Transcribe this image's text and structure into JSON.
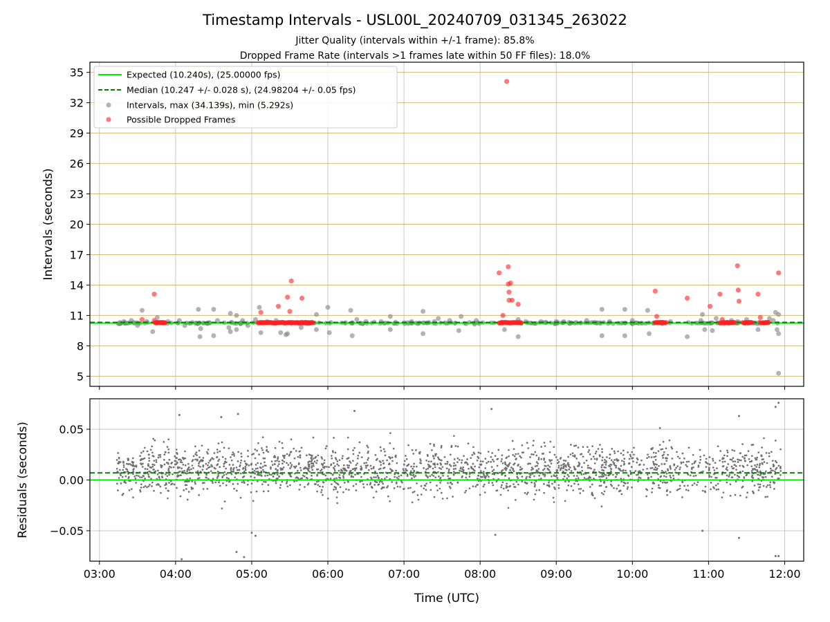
{
  "figure": {
    "title": "Timestamp Intervals - USL00L_20240709_031345_263022",
    "subtitle_1": "Jitter Quality (intervals within +/-1 frame): 85.8%",
    "subtitle_2": "Dropped Frame Rate (intervals >1 frames late within 50 FF files): 18.0%"
  },
  "chart_data": [
    {
      "type": "scatter",
      "ylabel": "Intervals (seconds)",
      "xlabel": "",
      "xlim_hours": [
        2.875,
        12.25
      ],
      "ylim": [
        4,
        36
      ],
      "yticks": [
        5,
        8,
        11,
        14,
        17,
        20,
        23,
        26,
        29,
        32,
        35
      ],
      "ytick_labels": [
        "5",
        "8",
        "11",
        "14",
        "17",
        "20",
        "23",
        "26",
        "29",
        "32",
        "35"
      ],
      "horizontal_gridlines": "tan",
      "vertical_gridlines": true,
      "legend_position": "upper-left",
      "legend": [
        {
          "label": "Expected (10.240s), (25.00000 fps)",
          "style": "solid-line",
          "color": "#00ee00"
        },
        {
          "label": "Median (10.247 +/- 0.028 s), (24.98204 +/- 0.05 fps)",
          "style": "dashed-line",
          "color": "#008000"
        },
        {
          "label": "Intervals, max (34.139s), min (5.292s)",
          "style": "marker",
          "color": "#808080"
        },
        {
          "label": "Possible Dropped Frames",
          "style": "marker",
          "color": "#ff2020"
        }
      ],
      "expected_interval": 10.24,
      "median_interval": 10.247,
      "interval_band_range": [
        3.23,
        11.93
      ],
      "interval_band_values": [
        10.18,
        10.32
      ],
      "gray_outliers": [
        [
          3.32,
          10.4
        ],
        [
          3.42,
          10.5
        ],
        [
          3.5,
          10.0
        ],
        [
          3.56,
          11.5
        ],
        [
          3.62,
          10.4
        ],
        [
          3.7,
          9.4
        ],
        [
          3.76,
          10.8
        ],
        [
          3.9,
          10.4
        ],
        [
          4.05,
          10.5
        ],
        [
          4.12,
          10.0
        ],
        [
          4.22,
          10.3
        ],
        [
          4.3,
          11.6
        ],
        [
          4.32,
          8.9
        ],
        [
          4.33,
          9.7
        ],
        [
          4.42,
          10.2
        ],
        [
          4.5,
          11.6
        ],
        [
          4.5,
          9.0
        ],
        [
          4.55,
          10.5
        ],
        [
          4.7,
          9.8
        ],
        [
          4.72,
          11.2
        ],
        [
          4.72,
          9.4
        ],
        [
          4.8,
          11.0
        ],
        [
          4.8,
          9.6
        ],
        [
          4.88,
          10.5
        ],
        [
          4.95,
          10.0
        ],
        [
          5.05,
          10.6
        ],
        [
          5.1,
          11.8
        ],
        [
          5.12,
          9.3
        ],
        [
          5.2,
          10.4
        ],
        [
          5.32,
          10.5
        ],
        [
          5.38,
          9.3
        ],
        [
          5.45,
          9.1
        ],
        [
          5.47,
          9.2
        ],
        [
          5.65,
          9.8
        ],
        [
          5.75,
          10.2
        ],
        [
          5.85,
          9.6
        ],
        [
          5.85,
          11.1
        ],
        [
          6.0,
          11.8
        ],
        [
          6.02,
          9.3
        ],
        [
          6.3,
          11.5
        ],
        [
          6.32,
          9.0
        ],
        [
          6.38,
          10.6
        ],
        [
          6.5,
          10.4
        ],
        [
          6.7,
          10.4
        ],
        [
          6.82,
          10.9
        ],
        [
          6.82,
          9.6
        ],
        [
          7.1,
          10.4
        ],
        [
          7.25,
          11.4
        ],
        [
          7.25,
          9.2
        ],
        [
          7.4,
          10.4
        ],
        [
          7.45,
          10.7
        ],
        [
          7.6,
          10.5
        ],
        [
          7.72,
          9.5
        ],
        [
          7.75,
          10.9
        ],
        [
          7.95,
          10.5
        ],
        [
          8.32,
          9.6
        ],
        [
          8.5,
          8.9
        ],
        [
          8.5,
          10.6
        ],
        [
          8.6,
          10.4
        ],
        [
          8.8,
          10.4
        ],
        [
          9.0,
          10.4
        ],
        [
          9.1,
          10.4
        ],
        [
          9.4,
          10.5
        ],
        [
          9.6,
          11.6
        ],
        [
          9.6,
          9.0
        ],
        [
          9.7,
          10.4
        ],
        [
          9.9,
          11.6
        ],
        [
          9.9,
          9.0
        ],
        [
          10.0,
          10.5
        ],
        [
          10.2,
          11.5
        ],
        [
          10.22,
          9.2
        ],
        [
          10.5,
          10.4
        ],
        [
          10.72,
          8.9
        ],
        [
          10.9,
          10.5
        ],
        [
          10.92,
          11.1
        ],
        [
          10.95,
          9.6
        ],
        [
          11.05,
          9.5
        ],
        [
          11.1,
          10.7
        ],
        [
          11.2,
          10.2
        ],
        [
          11.3,
          10.5
        ],
        [
          11.38,
          10.4
        ],
        [
          11.5,
          10.6
        ],
        [
          11.65,
          9.6
        ],
        [
          11.8,
          10.7
        ],
        [
          11.85,
          10.5
        ],
        [
          11.88,
          11.3
        ],
        [
          11.9,
          9.6
        ],
        [
          11.92,
          9.2
        ],
        [
          11.92,
          11.1
        ],
        [
          11.92,
          5.29
        ]
      ],
      "dropped_frames": [
        [
          3.56,
          10.6
        ],
        [
          3.72,
          13.1
        ],
        [
          3.72,
          10.5
        ],
        [
          3.75,
          10.3
        ],
        [
          3.8,
          10.3
        ],
        [
          3.85,
          10.3
        ],
        [
          5.12,
          11.3
        ],
        [
          5.15,
          10.3
        ],
        [
          5.2,
          10.3
        ],
        [
          5.35,
          11.9
        ],
        [
          5.42,
          10.3
        ],
        [
          5.47,
          12.8
        ],
        [
          5.5,
          11.4
        ],
        [
          5.52,
          14.4
        ],
        [
          5.6,
          10.3
        ],
        [
          5.66,
          12.7
        ],
        [
          5.7,
          10.3
        ],
        [
          5.78,
          10.3
        ],
        [
          8.25,
          15.2
        ],
        [
          8.3,
          11.0
        ],
        [
          8.35,
          34.1
        ],
        [
          8.37,
          15.8
        ],
        [
          8.37,
          14.1
        ],
        [
          8.38,
          13.3
        ],
        [
          8.38,
          12.5
        ],
        [
          8.4,
          14.2
        ],
        [
          8.42,
          12.5
        ],
        [
          8.5,
          12.1
        ],
        [
          8.5,
          10.3
        ],
        [
          10.3,
          13.4
        ],
        [
          10.32,
          10.9
        ],
        [
          10.4,
          10.3
        ],
        [
          10.72,
          12.7
        ],
        [
          11.02,
          11.9
        ],
        [
          11.15,
          13.1
        ],
        [
          11.18,
          10.6
        ],
        [
          11.25,
          10.3
        ],
        [
          11.38,
          15.9
        ],
        [
          11.39,
          13.5
        ],
        [
          11.4,
          12.4
        ],
        [
          11.5,
          10.3
        ],
        [
          11.55,
          10.3
        ],
        [
          11.65,
          13.1
        ],
        [
          11.68,
          10.8
        ],
        [
          11.75,
          10.3
        ],
        [
          11.92,
          15.2
        ]
      ],
      "dropped_frame_runs": [
        [
          3.73,
          3.87
        ],
        [
          5.08,
          5.8
        ],
        [
          8.25,
          8.55
        ],
        [
          10.3,
          10.45
        ],
        [
          11.15,
          11.35
        ],
        [
          11.45,
          11.58
        ],
        [
          11.68,
          11.8
        ]
      ]
    },
    {
      "type": "scatter",
      "ylabel": "Residuals (seconds)",
      "xlabel": "Time (UTC)",
      "xlim_hours": [
        2.875,
        12.25
      ],
      "ylim": [
        -0.08,
        0.08
      ],
      "yticks": [
        -0.05,
        0.0,
        0.05
      ],
      "ytick_labels": [
        "−0.05",
        "0.00",
        "0.05"
      ],
      "xtick_labels": [
        "03:00",
        "04:00",
        "05:00",
        "06:00",
        "07:00",
        "08:00",
        "09:00",
        "10:00",
        "11:00",
        "12:00"
      ],
      "grid": true,
      "expected_residual": 0.0,
      "median_residual": 0.007,
      "residual_time_range": [
        3.23,
        11.95
      ],
      "residual_typical_range": [
        -0.025,
        0.045
      ],
      "residual_extremes": [
        [
          4.05,
          0.064
        ],
        [
          4.08,
          -0.078
        ],
        [
          4.6,
          0.062
        ],
        [
          4.82,
          0.065
        ],
        [
          4.8,
          -0.071
        ],
        [
          4.9,
          -0.076
        ],
        [
          5.0,
          -0.052
        ],
        [
          5.05,
          -0.055
        ],
        [
          6.35,
          0.068
        ],
        [
          8.15,
          0.07
        ],
        [
          8.2,
          -0.054
        ],
        [
          10.92,
          -0.05
        ],
        [
          11.4,
          0.063
        ],
        [
          11.4,
          -0.057
        ],
        [
          11.88,
          0.072
        ],
        [
          11.92,
          0.076
        ],
        [
          11.88,
          -0.075
        ],
        [
          11.92,
          -0.075
        ]
      ]
    }
  ]
}
